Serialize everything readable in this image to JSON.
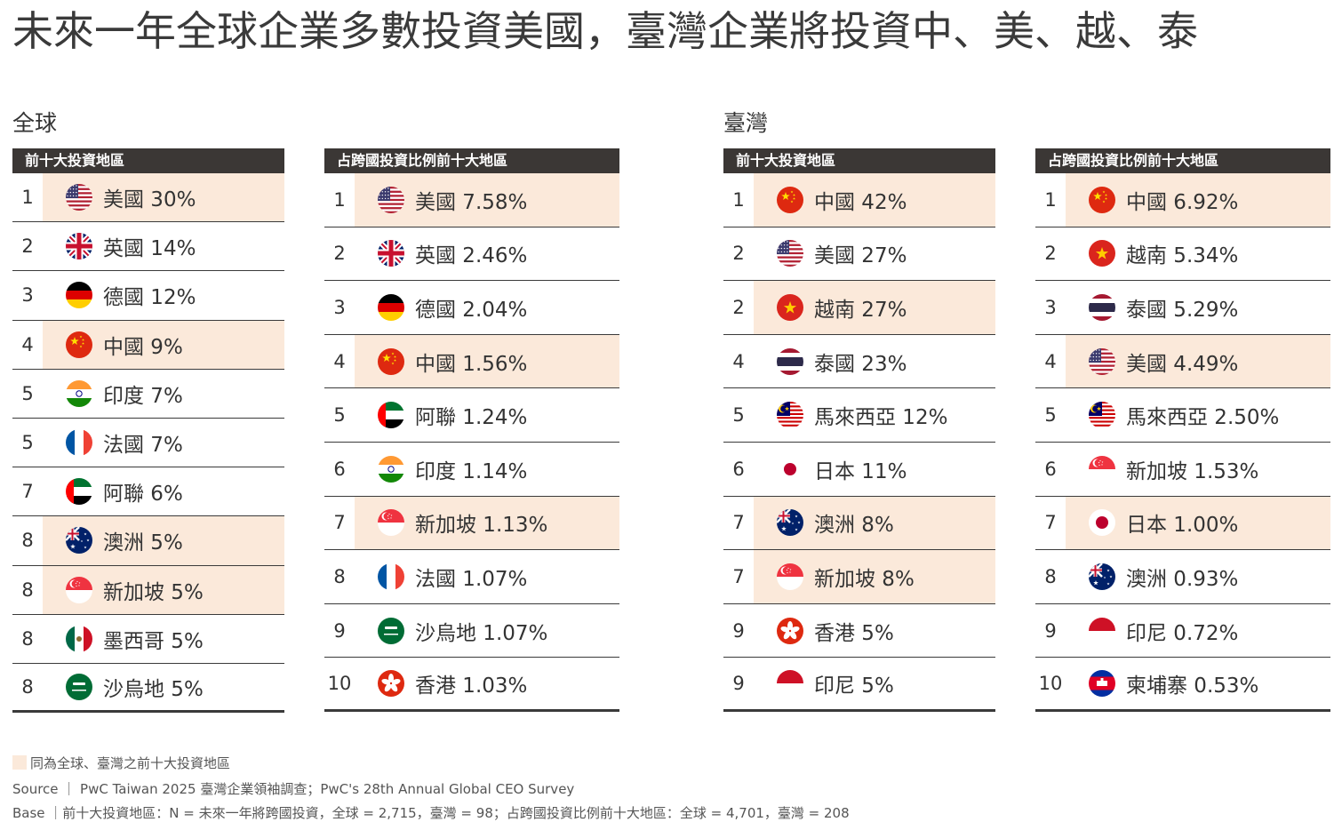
{
  "title": "未來一年全球企業多數投資美國，臺灣企業將投資中、美、越、泰",
  "global_label": "全球",
  "taiwan_label": "臺灣",
  "colors": {
    "header": "#3b3735",
    "highlight": "#fbe9da",
    "rule": "#3a3a3a"
  },
  "legend_text": "同為全球、臺灣之前十大投資地區",
  "source_line": "Source ｜ PwC Taiwan 2025 臺灣企業領袖調查；PwC's 28th Annual Global CEO Survey",
  "base_line": "Base ｜前十大投資地區：N = 未來一年將跨國投資，全球 = 2,715，臺灣 = 98；占跨國投資比例前十大地區：全球 = 4,701，臺灣 = 208",
  "chart_data": [
    {
      "type": "table",
      "header": "前十大投資地區",
      "rows": [
        {
          "rank": "1",
          "flag": "us-flag-icon",
          "label": "美國 30%",
          "highlight": true
        },
        {
          "rank": "2",
          "flag": "uk-flag-icon",
          "label": "英國 14%",
          "highlight": false
        },
        {
          "rank": "3",
          "flag": "germany-flag-icon",
          "label": "德國 12%",
          "highlight": false
        },
        {
          "rank": "4",
          "flag": "china-flag-icon",
          "label": "中國 9%",
          "highlight": true
        },
        {
          "rank": "5",
          "flag": "india-flag-icon",
          "label": "印度 7%",
          "highlight": false
        },
        {
          "rank": "5",
          "flag": "france-flag-icon",
          "label": "法國 7%",
          "highlight": false
        },
        {
          "rank": "7",
          "flag": "uae-flag-icon",
          "label": "阿聯 6%",
          "highlight": false
        },
        {
          "rank": "8",
          "flag": "australia-flag-icon",
          "label": "澳洲 5%",
          "highlight": true
        },
        {
          "rank": "8",
          "flag": "singapore-flag-icon",
          "label": "新加坡 5%",
          "highlight": true
        },
        {
          "rank": "8",
          "flag": "mexico-flag-icon",
          "label": "墨西哥 5%",
          "highlight": false
        },
        {
          "rank": "8",
          "flag": "saudi-flag-icon",
          "label": "沙烏地 5%",
          "highlight": false
        }
      ]
    },
    {
      "type": "table",
      "header": "占跨國投資比例前十大地區",
      "rows": [
        {
          "rank": "1",
          "flag": "us-flag-icon",
          "label": "美國 7.58%",
          "highlight": true
        },
        {
          "rank": "2",
          "flag": "uk-flag-icon",
          "label": "英國 2.46%",
          "highlight": false
        },
        {
          "rank": "3",
          "flag": "germany-flag-icon",
          "label": "德國 2.04%",
          "highlight": false
        },
        {
          "rank": "4",
          "flag": "china-flag-icon",
          "label": "中國 1.56%",
          "highlight": true
        },
        {
          "rank": "5",
          "flag": "uae-flag-icon",
          "label": "阿聯 1.24%",
          "highlight": false
        },
        {
          "rank": "6",
          "flag": "india-flag-icon",
          "label": "印度 1.14%",
          "highlight": false
        },
        {
          "rank": "7",
          "flag": "singapore-flag-icon",
          "label": "新加坡 1.13%",
          "highlight": true
        },
        {
          "rank": "8",
          "flag": "france-flag-icon",
          "label": "法國 1.07%",
          "highlight": false
        },
        {
          "rank": "9",
          "flag": "saudi-flag-icon",
          "label": "沙烏地 1.07%",
          "highlight": false
        },
        {
          "rank": "10",
          "flag": "hongkong-flag-icon",
          "label": "香港 1.03%",
          "highlight": false
        }
      ]
    },
    {
      "type": "table",
      "header": "前十大投資地區",
      "rows": [
        {
          "rank": "1",
          "flag": "china-flag-icon",
          "label": "中國 42%",
          "highlight": true
        },
        {
          "rank": "2",
          "flag": "us-flag-icon",
          "label": "美國 27%",
          "highlight": false
        },
        {
          "rank": "2",
          "flag": "vietnam-flag-icon",
          "label": "越南 27%",
          "highlight": true
        },
        {
          "rank": "4",
          "flag": "thailand-flag-icon",
          "label": "泰國 23%",
          "highlight": false
        },
        {
          "rank": "5",
          "flag": "malaysia-flag-icon",
          "label": "馬來西亞 12%",
          "highlight": false
        },
        {
          "rank": "6",
          "flag": "japan-flag-icon",
          "label": "日本 11%",
          "highlight": false
        },
        {
          "rank": "7",
          "flag": "australia-flag-icon",
          "label": "澳洲 8%",
          "highlight": true
        },
        {
          "rank": "7",
          "flag": "singapore-flag-icon",
          "label": "新加坡 8%",
          "highlight": true
        },
        {
          "rank": "9",
          "flag": "hongkong-flag-icon",
          "label": "香港 5%",
          "highlight": false
        },
        {
          "rank": "9",
          "flag": "indonesia-flag-icon",
          "label": "印尼 5%",
          "highlight": false
        }
      ]
    },
    {
      "type": "table",
      "header": "占跨國投資比例前十大地區",
      "rows": [
        {
          "rank": "1",
          "flag": "china-flag-icon",
          "label": "中國 6.92%",
          "highlight": true
        },
        {
          "rank": "2",
          "flag": "vietnam-flag-icon",
          "label": "越南 5.34%",
          "highlight": false
        },
        {
          "rank": "3",
          "flag": "thailand-flag-icon",
          "label": "泰國 5.29%",
          "highlight": false
        },
        {
          "rank": "4",
          "flag": "us-flag-icon",
          "label": "美國 4.49%",
          "highlight": true
        },
        {
          "rank": "5",
          "flag": "malaysia-flag-icon",
          "label": "馬來西亞 2.50%",
          "highlight": false
        },
        {
          "rank": "6",
          "flag": "singapore-flag-icon",
          "label": "新加坡 1.53%",
          "highlight": false
        },
        {
          "rank": "7",
          "flag": "japan-flag-icon",
          "label": "日本 1.00%",
          "highlight": true
        },
        {
          "rank": "8",
          "flag": "australia-flag-icon",
          "label": "澳洲 0.93%",
          "highlight": false
        },
        {
          "rank": "9",
          "flag": "indonesia-flag-icon",
          "label": "印尼 0.72%",
          "highlight": false
        },
        {
          "rank": "10",
          "flag": "cambodia-flag-icon",
          "label": "柬埔寨 0.53%",
          "highlight": false
        }
      ]
    }
  ]
}
